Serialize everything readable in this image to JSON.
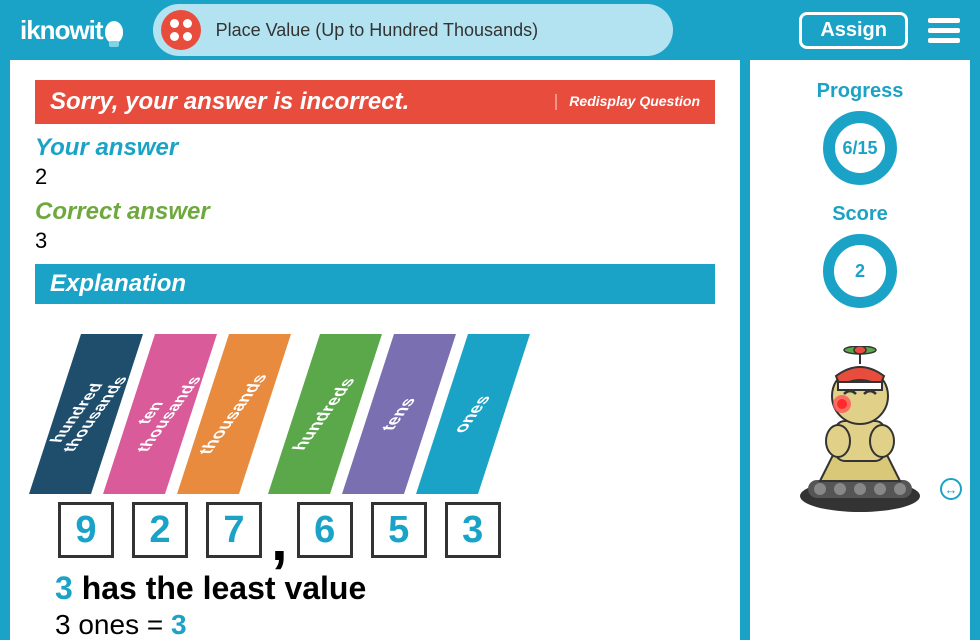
{
  "header": {
    "logo_text": "iknowit",
    "lesson_title": "Place Value (Up to Hundred Thousands)",
    "assign_label": "Assign"
  },
  "feedback": {
    "error_msg": "Sorry, your answer is incorrect.",
    "redisplay_label": "Redisplay Question",
    "your_label": "Your answer",
    "your_value": "2",
    "correct_label": "Correct answer",
    "correct_value": "3",
    "explanation_label": "Explanation"
  },
  "places": [
    {
      "label": "hundred thousands",
      "digit": "9",
      "color": "#1e4e6b"
    },
    {
      "label": "ten thousands",
      "digit": "2",
      "color": "#d95b9a"
    },
    {
      "label": "thousands",
      "digit": "7",
      "color": "#e88b3e"
    },
    {
      "label": "hundreds",
      "digit": "6",
      "color": "#5ba84a"
    },
    {
      "label": "tens",
      "digit": "5",
      "color": "#7a6fb0"
    },
    {
      "label": "ones",
      "digit": "3",
      "color": "#1ba3c7"
    }
  ],
  "statement": {
    "line1_hl": "3",
    "line1_rest": " has the least value",
    "line2_pre": "3 ones = ",
    "line2_hl": "3"
  },
  "sidebar": {
    "progress_label": "Progress",
    "progress_value": "6/15",
    "score_label": "Score",
    "score_value": "2"
  },
  "colors": {
    "brand": "#1ba3c7",
    "error": "#e84c3d",
    "correct": "#6fa83e",
    "pill": "#b3e3f0"
  }
}
